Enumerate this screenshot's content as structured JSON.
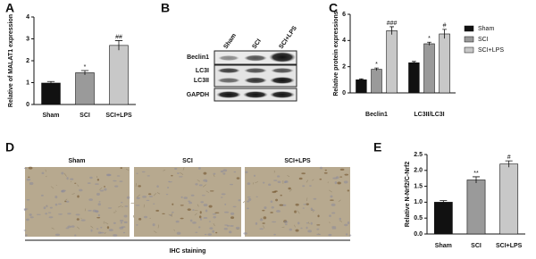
{
  "panel_labels": [
    "A",
    "B",
    "C",
    "D",
    "E"
  ],
  "blot": {
    "lanes": [
      "Sham",
      "SCI",
      "SCI+LPS"
    ],
    "rows": [
      "Beclin1",
      "LC3I",
      "LC3II",
      "GAPDH"
    ]
  },
  "ihc": {
    "groups": [
      "Sham",
      "SCI",
      "SCI+LPS"
    ],
    "caption": "IHC staining"
  },
  "chart_data": [
    {
      "type": "bar",
      "y_label": "Relative of MALAT1 expression",
      "categories": [
        "Sham",
        "SCI",
        "SCI+LPS"
      ],
      "values": [
        0.98,
        1.45,
        2.7
      ],
      "errors": [
        0.07,
        0.1,
        0.22
      ],
      "annotations": [
        null,
        "*",
        "##"
      ],
      "colors": [
        "#111111",
        "#9a9a9a",
        "#c8c8c8"
      ],
      "ylim": [
        0,
        4
      ],
      "yticks": [
        0,
        1,
        2,
        3,
        4
      ]
    },
    {
      "type": "bar",
      "y_label": "Relative protein expressions",
      "categories": [
        "Beclin1",
        "LC3II/LC3I"
      ],
      "series": [
        {
          "name": "Sham",
          "color": "#111111",
          "values": [
            1.0,
            2.3
          ],
          "errors": [
            0.07,
            0.1
          ],
          "annotations": [
            null,
            null
          ]
        },
        {
          "name": "SCI",
          "color": "#9a9a9a",
          "values": [
            1.8,
            3.75
          ],
          "errors": [
            0.1,
            0.12
          ],
          "annotations": [
            "*",
            "*"
          ]
        },
        {
          "name": "SCI+LPS",
          "color": "#c8c8c8",
          "values": [
            4.75,
            4.5
          ],
          "errors": [
            0.3,
            0.35
          ],
          "annotations": [
            "###",
            "#"
          ]
        }
      ],
      "ylim": [
        0,
        6
      ],
      "yticks": [
        0,
        2,
        4,
        6
      ]
    },
    {
      "type": "bar",
      "y_label": "Relative N-Nrf2/C-Nrf2",
      "categories": [
        "Sham",
        "SCI",
        "SCI+LPS"
      ],
      "values": [
        1.0,
        1.7,
        2.2
      ],
      "errors": [
        0.05,
        0.1,
        0.1
      ],
      "annotations": [
        null,
        "**",
        "#"
      ],
      "colors": [
        "#111111",
        "#9a9a9a",
        "#c8c8c8"
      ],
      "ylim": [
        0,
        2.5
      ],
      "yticks": [
        {
          "value": 0,
          "label": "0.0"
        },
        0.5,
        {
          "value": 1,
          "label": "1.0"
        },
        1.5,
        {
          "value": 2,
          "label": "2.0"
        },
        2.5
      ]
    }
  ]
}
